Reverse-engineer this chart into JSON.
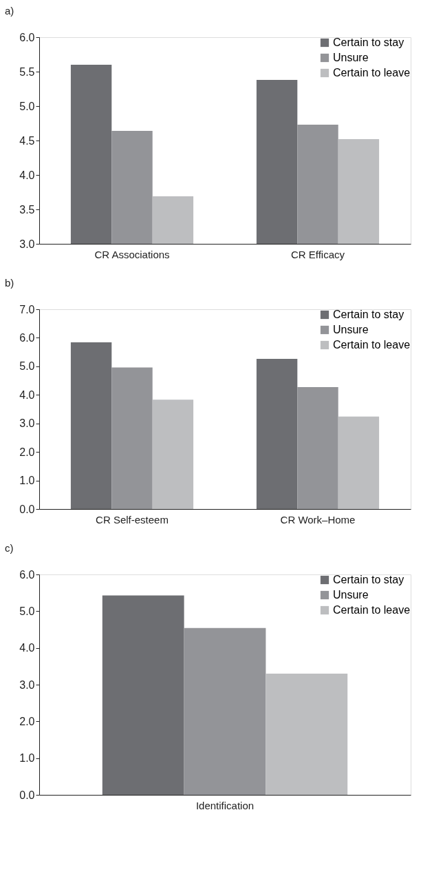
{
  "chart_data": [
    {
      "type": "bar",
      "title": "a)",
      "categories": [
        "CR Associations",
        "CR Efficacy"
      ],
      "series": [
        {
          "name": "Certain to stay",
          "color": "#6d6e72",
          "values": [
            5.6,
            5.38
          ]
        },
        {
          "name": "Unsure",
          "color": "#939498",
          "values": [
            4.64,
            4.73
          ]
        },
        {
          "name": "Certain to leave",
          "color": "#bdbec0",
          "values": [
            3.69,
            4.52
          ]
        }
      ],
      "ylim": [
        3.0,
        6.0
      ],
      "yticks": [
        {
          "value": 3,
          "label": "3.0"
        },
        {
          "value": 3.5,
          "label": "3.5"
        },
        {
          "value": 4,
          "label": "4.0"
        },
        {
          "value": 4.5,
          "label": "4.5"
        },
        {
          "value": 5,
          "label": "5.0"
        },
        {
          "value": 5.5,
          "label": "5.5"
        },
        {
          "value": 6,
          "label": "6.0"
        }
      ],
      "grid": false,
      "legend": "top right"
    },
    {
      "type": "bar",
      "title": "b)",
      "categories": [
        "CR Self-esteem",
        "CR Work–Home"
      ],
      "series": [
        {
          "name": "Certain to stay",
          "color": "#6d6e72",
          "values": [
            5.84,
            5.26
          ]
        },
        {
          "name": "Unsure",
          "color": "#939498",
          "values": [
            4.96,
            4.27
          ]
        },
        {
          "name": "Certain to leave",
          "color": "#bdbec0",
          "values": [
            3.83,
            3.24
          ]
        }
      ],
      "ylim": [
        0.0,
        7.0
      ],
      "yticks": [
        {
          "value": 0,
          "label": "0.0"
        },
        {
          "value": 1,
          "label": "1.0"
        },
        {
          "value": 2,
          "label": "2.0"
        },
        {
          "value": 3,
          "label": "3.0"
        },
        {
          "value": 4,
          "label": "4.0"
        },
        {
          "value": 5,
          "label": "5.0"
        },
        {
          "value": 6,
          "label": "6.0"
        },
        {
          "value": 7,
          "label": "7.0"
        }
      ],
      "grid": false,
      "legend": "top right"
    },
    {
      "type": "bar",
      "title": "c)",
      "categories": [
        "Identification"
      ],
      "series": [
        {
          "name": "Certain to stay",
          "color": "#6d6e72",
          "values": [
            5.43
          ]
        },
        {
          "name": "Unsure",
          "color": "#939498",
          "values": [
            4.54
          ]
        },
        {
          "name": "Certain to leave",
          "color": "#bdbec0",
          "values": [
            3.3
          ]
        }
      ],
      "ylim": [
        0.0,
        6.0
      ],
      "yticks": [
        {
          "value": 0,
          "label": "0.0"
        },
        {
          "value": 1,
          "label": "1.0"
        },
        {
          "value": 2,
          "label": "2.0"
        },
        {
          "value": 3,
          "label": "3.0"
        },
        {
          "value": 4,
          "label": "4.0"
        },
        {
          "value": 5,
          "label": "5.0"
        },
        {
          "value": 6,
          "label": "6.0"
        }
      ],
      "grid": false,
      "legend": "top right"
    }
  ]
}
